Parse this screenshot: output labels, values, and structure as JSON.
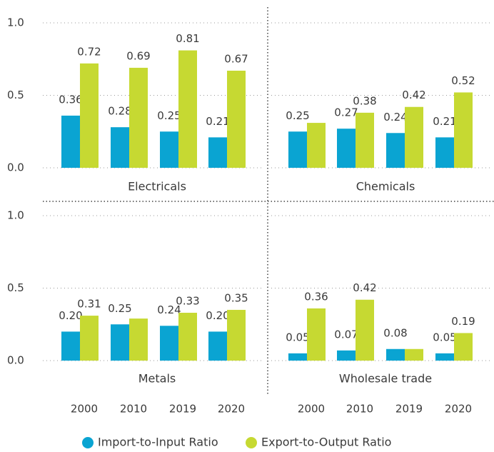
{
  "chart_data": {
    "type": "bar",
    "categories": [
      "2000",
      "2010",
      "2019",
      "2020"
    ],
    "series": [
      {
        "name": "Import-to-Input Ratio",
        "color": "#0aa4d2"
      },
      {
        "name": "Export-to-Output Ratio",
        "color": "#c6d932"
      }
    ],
    "ylim": [
      0,
      1
    ],
    "yticks": [
      {
        "value": 0,
        "label": "0.0"
      },
      {
        "value": 0.5,
        "label": "0.5"
      },
      {
        "value": 1,
        "label": "1.0"
      }
    ],
    "grid": true,
    "panels": [
      {
        "title": "Electricals",
        "values": [
          [
            0.36,
            0.28,
            0.25,
            0.21
          ],
          [
            0.72,
            0.69,
            0.81,
            0.67
          ]
        ],
        "value_labels": [
          [
            "0.36",
            "0.28",
            "0.25",
            "0.21"
          ],
          [
            "0.72",
            "0.69",
            "0.81",
            "0.67"
          ]
        ]
      },
      {
        "title": "Chemicals",
        "values": [
          [
            0.25,
            0.27,
            0.24,
            0.21
          ],
          [
            0.31,
            0.38,
            0.42,
            0.52
          ]
        ],
        "value_labels": [
          [
            "0.25",
            "0.27",
            "0.24",
            "0.21"
          ],
          [
            null,
            "0.38",
            "0.42",
            "0.52"
          ]
        ]
      },
      {
        "title": "Metals",
        "values": [
          [
            0.2,
            0.25,
            0.24,
            0.2
          ],
          [
            0.31,
            0.29,
            0.33,
            0.35
          ]
        ],
        "value_labels": [
          [
            "0.20",
            "0.25",
            "0.24",
            "0.20"
          ],
          [
            "0.31",
            null,
            "0.33",
            "0.35"
          ]
        ]
      },
      {
        "title": "Wholesale trade",
        "values": [
          [
            0.05,
            0.07,
            0.08,
            0.05
          ],
          [
            0.36,
            0.42,
            0.08,
            0.19
          ]
        ],
        "value_labels": [
          [
            "0.05",
            "0.07",
            "0.08",
            "0.05"
          ],
          [
            "0.36",
            "0.42",
            null,
            "0.19"
          ]
        ]
      }
    ]
  }
}
